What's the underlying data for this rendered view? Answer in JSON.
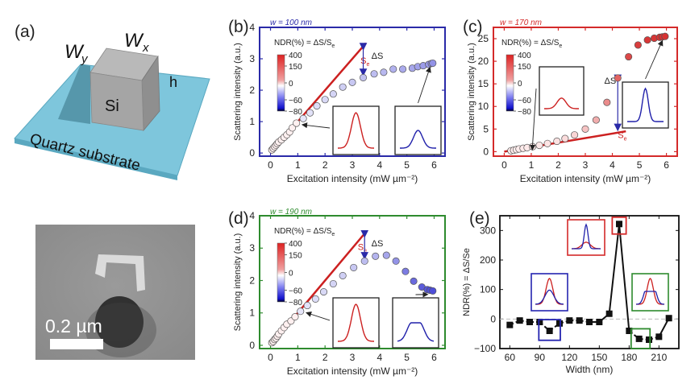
{
  "figure": {
    "panels": [
      {
        "label": "(a)"
      },
      {
        "label": "(b)"
      },
      {
        "label": "(c)"
      },
      {
        "label": "(d)"
      },
      {
        "label": "(e)"
      }
    ],
    "schematic": {
      "wx": "W",
      "wx_sub": "x",
      "wy": "W",
      "wy_sub": "y",
      "h": "h",
      "block": "Si",
      "substrate": "Quartz substrate"
    },
    "sem_image": {
      "scale_bar_label": "0.2 µm"
    },
    "colorbar": {
      "title": "NDR(%) = ΔS/S",
      "title_sub": "e",
      "ticks": [
        "400",
        "150",
        "0",
        "−60",
        "−80"
      ]
    },
    "colors": {
      "panel_b": "#2a2aa8",
      "panel_c": "#d42a2a",
      "panel_d": "#2e8b2e",
      "panel_e": "#111111",
      "se_line": "#cc2020",
      "arrow": "#2a2aa8"
    },
    "annotations": {
      "se": "S",
      "se_sub": "e",
      "delta_s": "ΔS"
    }
  },
  "chart_data": [
    {
      "id": "b",
      "type": "scatter",
      "title": "w = 100 nm",
      "xlabel": "Excitation intensity (mW µm⁻²)",
      "ylabel": "Scattering intensity (a.u.)",
      "xlim": [
        -0.4,
        6.4
      ],
      "ylim": [
        -0.1,
        4
      ],
      "xticks": [
        "0",
        "1",
        "2",
        "3",
        "4",
        "5",
        "6"
      ],
      "yticks": [
        "0",
        "1",
        "2",
        "3",
        "4"
      ],
      "x": [
        0.05,
        0.1,
        0.15,
        0.2,
        0.25,
        0.3,
        0.4,
        0.5,
        0.6,
        0.7,
        0.8,
        0.95,
        1.2,
        1.45,
        1.7,
        2.0,
        2.3,
        2.65,
        3.0,
        3.4,
        3.8,
        4.15,
        4.5,
        4.85,
        5.2,
        5.4,
        5.6,
        5.8,
        5.9,
        5.95
      ],
      "y": [
        0.1,
        0.15,
        0.2,
        0.25,
        0.3,
        0.35,
        0.42,
        0.5,
        0.58,
        0.67,
        0.8,
        0.95,
        1.1,
        1.28,
        1.5,
        1.7,
        1.88,
        2.1,
        2.25,
        2.4,
        2.52,
        2.57,
        2.67,
        2.67,
        2.7,
        2.75,
        2.78,
        2.82,
        2.85,
        2.86
      ],
      "ndr": [
        0,
        0,
        0,
        0,
        0,
        0,
        0,
        0,
        0,
        0,
        0,
        0,
        -2,
        -4,
        -6,
        -8,
        -10,
        -12,
        -15,
        -18,
        -20,
        -22,
        -25,
        -28,
        -30,
        -32,
        -34,
        -36,
        -37,
        -38
      ],
      "se_line": {
        "x": [
          0,
          3.5
        ],
        "y": [
          0,
          3.5
        ]
      },
      "delta_s_at_x": 3.4
    },
    {
      "id": "c",
      "type": "scatter",
      "title": "w = 170 nm",
      "xlabel": "Excitation intensity (mW µm⁻²)",
      "ylabel": "Scattering intensity (a.u.)",
      "xlim": [
        -0.4,
        6.4
      ],
      "ylim": [
        -1,
        27.5
      ],
      "xticks": [
        "0",
        "1",
        "2",
        "3",
        "4",
        "5",
        "6"
      ],
      "yticks": [
        "0",
        "5",
        "10",
        "15",
        "20",
        "25"
      ],
      "x": [
        0.25,
        0.35,
        0.45,
        0.55,
        0.7,
        0.85,
        1.05,
        1.3,
        1.6,
        1.95,
        2.25,
        2.6,
        3.0,
        3.4,
        3.8,
        4.2,
        4.6,
        4.95,
        5.3,
        5.55,
        5.75,
        5.85,
        5.95
      ],
      "y": [
        0.2,
        0.3,
        0.45,
        0.6,
        0.75,
        0.9,
        1.1,
        1.4,
        1.8,
        2.3,
        2.9,
        3.7,
        5.0,
        7.0,
        10.9,
        16.3,
        21.0,
        23.6,
        24.7,
        25.1,
        25.3,
        25.4,
        25.5
      ],
      "ndr": [
        5,
        5,
        5,
        8,
        10,
        10,
        12,
        15,
        20,
        25,
        35,
        50,
        80,
        120,
        180,
        250,
        300,
        320,
        330,
        335,
        338,
        340,
        340
      ],
      "se_line": {
        "x": [
          0,
          4.5
        ],
        "y": [
          0,
          4.5
        ]
      },
      "delta_s_at_x": 4.2
    },
    {
      "id": "d",
      "type": "scatter",
      "title": "w = 190 nm",
      "xlabel": "Excitation intensity (mW µm⁻²)",
      "ylabel": "Scattering intensity (a.u.)",
      "xlim": [
        -0.4,
        6.4
      ],
      "ylim": [
        -0.1,
        4
      ],
      "xticks": [
        "0",
        "1",
        "2",
        "3",
        "4",
        "5",
        "6"
      ],
      "yticks": [
        "0",
        "1",
        "2",
        "3",
        "4"
      ],
      "x": [
        0.05,
        0.1,
        0.15,
        0.2,
        0.25,
        0.3,
        0.4,
        0.5,
        0.6,
        0.75,
        0.9,
        1.1,
        1.35,
        1.65,
        1.95,
        2.3,
        2.65,
        3.05,
        3.45,
        3.85,
        4.25,
        4.6,
        4.95,
        5.25,
        5.55,
        5.75,
        5.85,
        5.95
      ],
      "y": [
        0.08,
        0.12,
        0.18,
        0.22,
        0.28,
        0.35,
        0.45,
        0.55,
        0.65,
        0.75,
        0.88,
        1.05,
        1.23,
        1.43,
        1.65,
        1.9,
        2.15,
        2.4,
        2.6,
        2.75,
        2.78,
        2.6,
        2.28,
        1.98,
        1.8,
        1.72,
        1.7,
        1.68
      ],
      "ndr": [
        0,
        0,
        0,
        0,
        0,
        0,
        0,
        0,
        0,
        0,
        0,
        -2,
        -4,
        -6,
        -8,
        -10,
        -12,
        -15,
        -20,
        -24,
        -30,
        -38,
        -48,
        -56,
        -62,
        -65,
        -67,
        -68
      ],
      "se_line": {
        "x": [
          0,
          3.5
        ],
        "y": [
          0,
          3.5
        ]
      },
      "delta_s_at_x": 3.45
    },
    {
      "id": "e",
      "type": "line",
      "title": "",
      "xlabel": "Width (nm)",
      "ylabel": "NDR(%) = ΔS/Se",
      "xlim": [
        50,
        230
      ],
      "ylim": [
        -100,
        350
      ],
      "xticks": [
        "60",
        "90",
        "120",
        "150",
        "180",
        "210"
      ],
      "yticks": [
        "−100",
        "0",
        "100",
        "200",
        "300"
      ],
      "x": [
        60,
        70,
        80,
        90,
        100,
        110,
        120,
        130,
        140,
        150,
        160,
        170,
        180,
        190,
        200,
        210,
        220
      ],
      "y": [
        -20,
        -5,
        -10,
        -10,
        -40,
        -15,
        -5,
        -5,
        -10,
        -10,
        18,
        322,
        -40,
        -67,
        -70,
        -60,
        3
      ],
      "reference_line_y": 0,
      "highlight_boxes": [
        {
          "x": 100,
          "color": "blue"
        },
        {
          "x": 170,
          "color": "red"
        },
        {
          "x": 195,
          "color": "green"
        }
      ]
    }
  ]
}
